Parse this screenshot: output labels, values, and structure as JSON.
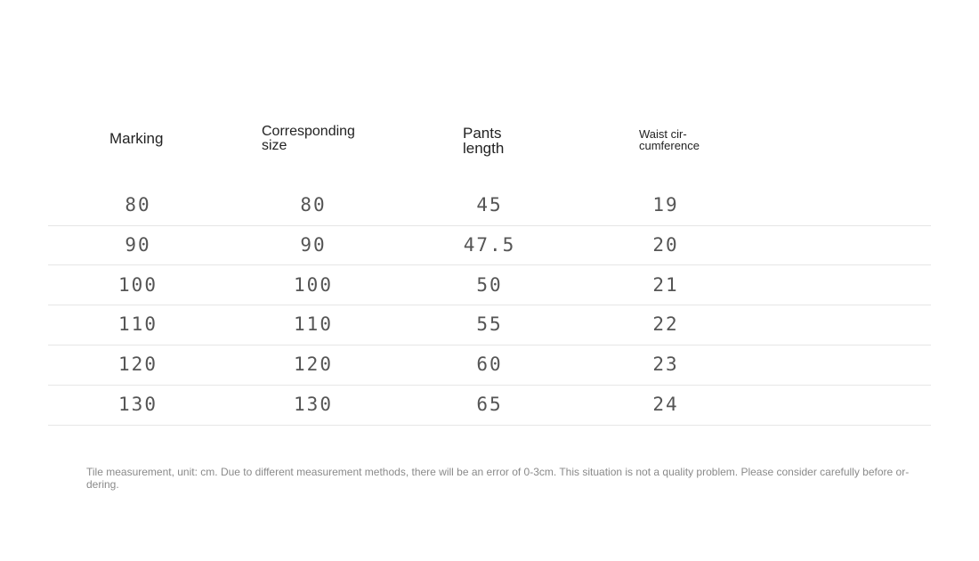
{
  "table": {
    "headers": [
      "Marking",
      "Corresponding\nsize",
      "Pants\nlength",
      "Waist cir-\ncumference"
    ],
    "rows": [
      [
        80,
        80,
        45,
        19
      ],
      [
        90,
        90,
        47.5,
        20
      ],
      [
        100,
        100,
        50,
        21
      ],
      [
        110,
        110,
        55,
        22
      ],
      [
        120,
        120,
        60,
        23
      ],
      [
        130,
        130,
        65,
        24
      ]
    ]
  },
  "note": "Tile measurement, unit: cm. Due to different measurement methods, there will be an error of 0-3cm. This situation is not a quality problem. Please consider carefully before or-\ndering."
}
